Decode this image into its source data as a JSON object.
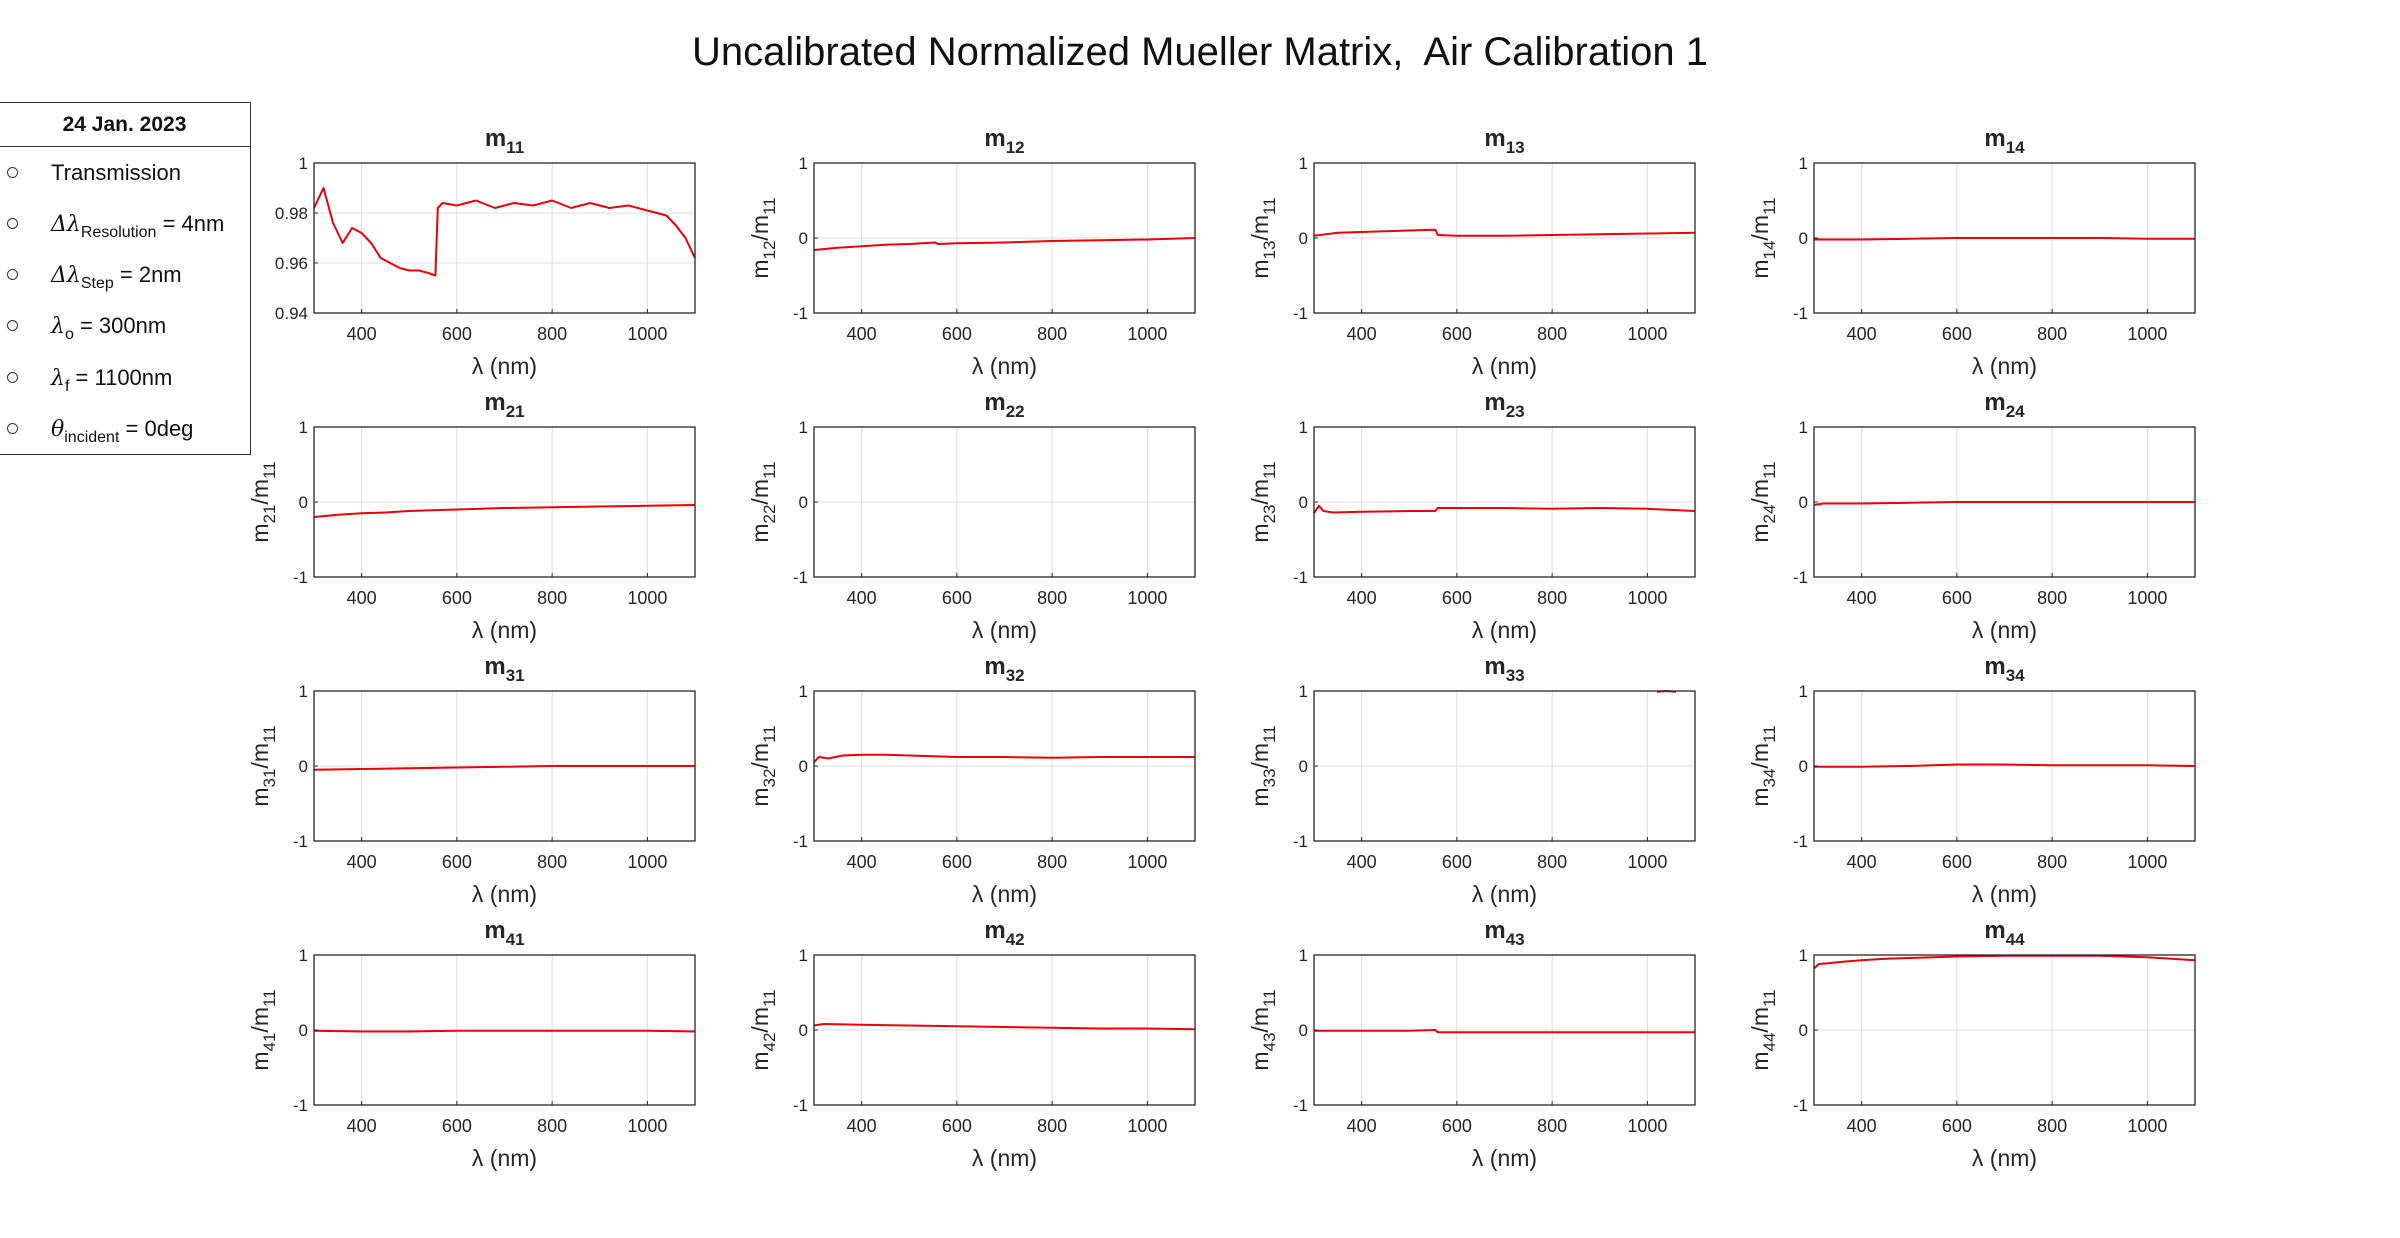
{
  "figure": {
    "title": "Uncalibrated Normalized Mueller Matrix,  Air Calibration 1"
  },
  "legend": {
    "header": "24 Jan. 2023",
    "items": [
      {
        "main": "Transmission",
        "sub": "",
        "tail": ""
      },
      {
        "main": "Δλ",
        "sub": "Resolution",
        "tail": " = 4nm"
      },
      {
        "main": "Δλ",
        "sub": "Step",
        "tail": " = 2nm"
      },
      {
        "main": "λ",
        "sub": "o",
        "tail": " = 300nm"
      },
      {
        "main": "λ",
        "sub": "f",
        "tail": " = 1100nm"
      },
      {
        "main": "θ",
        "sub": "incident",
        "tail": " = 0deg"
      }
    ]
  },
  "colors": {
    "series": "#e8000b",
    "axis": "#262626",
    "grid": "#dcdcdc",
    "text": "#262626"
  },
  "chart_data": [
    {
      "type": "line",
      "title": "m11",
      "xlabel": "λ (nm)",
      "ylabel": "",
      "xlim": [
        300,
        1100
      ],
      "ylim": [
        0.94,
        1.0
      ],
      "xticks": [
        400,
        600,
        800,
        1000
      ],
      "yticks": [
        0.94,
        0.96,
        0.98,
        1
      ],
      "yticklabels": [
        "0.94",
        "0.96",
        "0.98",
        "1"
      ],
      "grid": true,
      "series": [
        {
          "x": [
            300,
            320,
            340,
            360,
            380,
            400,
            420,
            440,
            460,
            480,
            500,
            520,
            540,
            555,
            560,
            570,
            600,
            640,
            680,
            720,
            760,
            800,
            840,
            880,
            920,
            960,
            1000,
            1040,
            1060,
            1080,
            1100
          ],
          "y": [
            0.982,
            0.99,
            0.976,
            0.968,
            0.974,
            0.972,
            0.968,
            0.962,
            0.96,
            0.958,
            0.957,
            0.957,
            0.956,
            0.955,
            0.982,
            0.984,
            0.983,
            0.985,
            0.982,
            0.984,
            0.983,
            0.985,
            0.982,
            0.984,
            0.982,
            0.983,
            0.981,
            0.979,
            0.975,
            0.97,
            0.962
          ]
        }
      ]
    },
    {
      "type": "line",
      "title": "m12",
      "xlabel": "λ (nm)",
      "ylabel": "m12/m11",
      "xlim": [
        300,
        1100
      ],
      "ylim": [
        -1,
        1
      ],
      "xticks": [
        400,
        600,
        800,
        1000
      ],
      "yticks": [
        -1,
        0,
        1
      ],
      "yticklabels": [
        "-1",
        "0",
        "1"
      ],
      "grid": true,
      "series": [
        {
          "x": [
            300,
            350,
            400,
            450,
            500,
            555,
            560,
            600,
            700,
            800,
            900,
            1000,
            1100
          ],
          "y": [
            -0.16,
            -0.13,
            -0.11,
            -0.09,
            -0.08,
            -0.06,
            -0.08,
            -0.07,
            -0.06,
            -0.04,
            -0.03,
            -0.02,
            0.0
          ]
        }
      ]
    },
    {
      "type": "line",
      "title": "m13",
      "xlabel": "λ (nm)",
      "ylabel": "m13/m11",
      "xlim": [
        300,
        1100
      ],
      "ylim": [
        -1,
        1
      ],
      "xticks": [
        400,
        600,
        800,
        1000
      ],
      "yticks": [
        -1,
        0,
        1
      ],
      "yticklabels": [
        "-1",
        "0",
        "1"
      ],
      "grid": true,
      "series": [
        {
          "x": [
            300,
            350,
            400,
            450,
            500,
            555,
            560,
            600,
            700,
            800,
            900,
            1000,
            1100
          ],
          "y": [
            0.03,
            0.07,
            0.08,
            0.09,
            0.1,
            0.11,
            0.04,
            0.03,
            0.03,
            0.04,
            0.05,
            0.06,
            0.07
          ]
        }
      ]
    },
    {
      "type": "line",
      "title": "m14",
      "xlabel": "λ (nm)",
      "ylabel": "m14/m11",
      "xlim": [
        300,
        1100
      ],
      "ylim": [
        -1,
        1
      ],
      "xticks": [
        400,
        600,
        800,
        1000
      ],
      "yticks": [
        -1,
        0,
        1
      ],
      "yticklabels": [
        "-1",
        "0",
        "1"
      ],
      "grid": true,
      "series": [
        {
          "x": [
            300,
            400,
            500,
            600,
            700,
            800,
            900,
            1000,
            1100
          ],
          "y": [
            -0.02,
            -0.02,
            -0.01,
            0.0,
            0.0,
            0.0,
            0.0,
            -0.01,
            -0.01
          ]
        }
      ]
    },
    {
      "type": "line",
      "title": "m21",
      "xlabel": "λ (nm)",
      "ylabel": "m21/m11",
      "xlim": [
        300,
        1100
      ],
      "ylim": [
        -1,
        1
      ],
      "xticks": [
        400,
        600,
        800,
        1000
      ],
      "yticks": [
        -1,
        0,
        1
      ],
      "yticklabels": [
        "-1",
        "0",
        "1"
      ],
      "grid": true,
      "series": [
        {
          "x": [
            300,
            350,
            400,
            450,
            500,
            600,
            700,
            800,
            900,
            1000,
            1100
          ],
          "y": [
            -0.2,
            -0.17,
            -0.15,
            -0.14,
            -0.12,
            -0.1,
            -0.08,
            -0.07,
            -0.06,
            -0.05,
            -0.04
          ]
        }
      ]
    },
    {
      "type": "line",
      "title": "m22",
      "xlabel": "λ (nm)",
      "ylabel": "m22/m11",
      "xlim": [
        300,
        1100
      ],
      "ylim": [
        -1,
        1
      ],
      "xticks": [
        400,
        600,
        800,
        1000
      ],
      "yticks": [
        -1,
        0,
        1
      ],
      "yticklabels": [
        "-1",
        "0",
        "1"
      ],
      "grid": true,
      "series": []
    },
    {
      "type": "line",
      "title": "m23",
      "xlabel": "λ (nm)",
      "ylabel": "m23/m11",
      "xlim": [
        300,
        1100
      ],
      "ylim": [
        -1,
        1
      ],
      "xticks": [
        400,
        600,
        800,
        1000
      ],
      "yticks": [
        -1,
        0,
        1
      ],
      "yticklabels": [
        "-1",
        "0",
        "1"
      ],
      "grid": true,
      "series": [
        {
          "x": [
            300,
            310,
            320,
            340,
            400,
            500,
            555,
            560,
            600,
            700,
            800,
            900,
            1000,
            1100
          ],
          "y": [
            -0.15,
            -0.05,
            -0.12,
            -0.14,
            -0.13,
            -0.12,
            -0.12,
            -0.08,
            -0.08,
            -0.08,
            -0.09,
            -0.08,
            -0.09,
            -0.12
          ]
        }
      ]
    },
    {
      "type": "line",
      "title": "m24",
      "xlabel": "λ (nm)",
      "ylabel": "m24/m11",
      "xlim": [
        300,
        1100
      ],
      "ylim": [
        -1,
        1
      ],
      "xticks": [
        400,
        600,
        800,
        1000
      ],
      "yticks": [
        -1,
        0,
        1
      ],
      "yticklabels": [
        "-1",
        "0",
        "1"
      ],
      "grid": true,
      "series": [
        {
          "x": [
            300,
            320,
            400,
            500,
            600,
            700,
            800,
            900,
            1000,
            1100
          ],
          "y": [
            -0.04,
            -0.02,
            -0.02,
            -0.01,
            0.0,
            0.0,
            0.0,
            0.0,
            0.0,
            0.0
          ]
        }
      ]
    },
    {
      "type": "line",
      "title": "m31",
      "xlabel": "λ (nm)",
      "ylabel": "m31/m11",
      "xlim": [
        300,
        1100
      ],
      "ylim": [
        -1,
        1
      ],
      "xticks": [
        400,
        600,
        800,
        1000
      ],
      "yticks": [
        -1,
        0,
        1
      ],
      "yticklabels": [
        "-1",
        "0",
        "1"
      ],
      "grid": true,
      "series": [
        {
          "x": [
            300,
            400,
            500,
            600,
            700,
            800,
            900,
            1000,
            1100
          ],
          "y": [
            -0.05,
            -0.04,
            -0.03,
            -0.02,
            -0.01,
            0.0,
            0.0,
            0.0,
            0.0
          ]
        }
      ]
    },
    {
      "type": "line",
      "title": "m32",
      "xlabel": "λ (nm)",
      "ylabel": "m32/m11",
      "xlim": [
        300,
        1100
      ],
      "ylim": [
        -1,
        1
      ],
      "xticks": [
        400,
        600,
        800,
        1000
      ],
      "yticks": [
        -1,
        0,
        1
      ],
      "yticklabels": [
        "-1",
        "0",
        "1"
      ],
      "grid": true,
      "series": [
        {
          "x": [
            300,
            310,
            330,
            360,
            400,
            450,
            500,
            600,
            700,
            800,
            900,
            1000,
            1100
          ],
          "y": [
            0.05,
            0.12,
            0.1,
            0.14,
            0.15,
            0.15,
            0.14,
            0.12,
            0.12,
            0.11,
            0.12,
            0.12,
            0.12
          ]
        }
      ]
    },
    {
      "type": "line",
      "title": "m33",
      "xlabel": "λ (nm)",
      "ylabel": "m33/m11",
      "xlim": [
        300,
        1100
      ],
      "ylim": [
        -1,
        1
      ],
      "xticks": [
        400,
        600,
        800,
        1000
      ],
      "yticks": [
        -1,
        0,
        1
      ],
      "yticklabels": [
        "-1",
        "0",
        "1"
      ],
      "grid": true,
      "series": [
        {
          "x": [
            1020,
            1040,
            1060
          ],
          "y": [
            0.99,
            1.0,
            0.99
          ]
        }
      ]
    },
    {
      "type": "line",
      "title": "m34",
      "xlabel": "λ (nm)",
      "ylabel": "m34/m11",
      "xlim": [
        300,
        1100
      ],
      "ylim": [
        -1,
        1
      ],
      "xticks": [
        400,
        600,
        800,
        1000
      ],
      "yticks": [
        -1,
        0,
        1
      ],
      "yticklabels": [
        "-1",
        "0",
        "1"
      ],
      "grid": true,
      "series": [
        {
          "x": [
            300,
            400,
            500,
            600,
            700,
            800,
            900,
            1000,
            1100
          ],
          "y": [
            -0.01,
            -0.01,
            0.0,
            0.02,
            0.02,
            0.01,
            0.01,
            0.01,
            0.0
          ]
        }
      ]
    },
    {
      "type": "line",
      "title": "m41",
      "xlabel": "λ (nm)",
      "ylabel": "m41/m11",
      "xlim": [
        300,
        1100
      ],
      "ylim": [
        -1,
        1
      ],
      "xticks": [
        400,
        600,
        800,
        1000
      ],
      "yticks": [
        -1,
        0,
        1
      ],
      "yticklabels": [
        "-1",
        "0",
        "1"
      ],
      "grid": true,
      "series": [
        {
          "x": [
            300,
            400,
            500,
            600,
            700,
            800,
            900,
            1000,
            1100
          ],
          "y": [
            -0.01,
            -0.02,
            -0.02,
            -0.01,
            -0.01,
            -0.01,
            -0.01,
            -0.01,
            -0.02
          ]
        }
      ]
    },
    {
      "type": "line",
      "title": "m42",
      "xlabel": "λ (nm)",
      "ylabel": "m42/m11",
      "xlim": [
        300,
        1100
      ],
      "ylim": [
        -1,
        1
      ],
      "xticks": [
        400,
        600,
        800,
        1000
      ],
      "yticks": [
        -1,
        0,
        1
      ],
      "yticklabels": [
        "-1",
        "0",
        "1"
      ],
      "grid": true,
      "series": [
        {
          "x": [
            300,
            320,
            400,
            500,
            600,
            700,
            800,
            900,
            1000,
            1100
          ],
          "y": [
            0.06,
            0.08,
            0.07,
            0.06,
            0.05,
            0.04,
            0.03,
            0.02,
            0.02,
            0.01
          ]
        }
      ]
    },
    {
      "type": "line",
      "title": "m43",
      "xlabel": "λ (nm)",
      "ylabel": "m43/m11",
      "xlim": [
        300,
        1100
      ],
      "ylim": [
        -1,
        1
      ],
      "xticks": [
        400,
        600,
        800,
        1000
      ],
      "yticks": [
        -1,
        0,
        1
      ],
      "yticklabels": [
        "-1",
        "0",
        "1"
      ],
      "grid": true,
      "series": [
        {
          "x": [
            300,
            400,
            500,
            555,
            560,
            600,
            700,
            800,
            900,
            1000,
            1100
          ],
          "y": [
            -0.01,
            -0.01,
            -0.01,
            0.0,
            -0.03,
            -0.03,
            -0.03,
            -0.03,
            -0.03,
            -0.03,
            -0.03
          ]
        }
      ]
    },
    {
      "type": "line",
      "title": "m44",
      "xlabel": "λ (nm)",
      "ylabel": "m44/m11",
      "xlim": [
        300,
        1100
      ],
      "ylim": [
        -1,
        1
      ],
      "xticks": [
        400,
        600,
        800,
        1000
      ],
      "yticks": [
        -1,
        0,
        1
      ],
      "yticklabels": [
        "-1",
        "0",
        "1"
      ],
      "grid": true,
      "series": [
        {
          "x": [
            300,
            310,
            330,
            360,
            400,
            450,
            500,
            600,
            700,
            800,
            900,
            1000,
            1050,
            1100
          ],
          "y": [
            0.82,
            0.88,
            0.89,
            0.91,
            0.93,
            0.95,
            0.96,
            0.98,
            0.99,
            0.99,
            0.99,
            0.97,
            0.95,
            0.93
          ]
        }
      ]
    }
  ]
}
